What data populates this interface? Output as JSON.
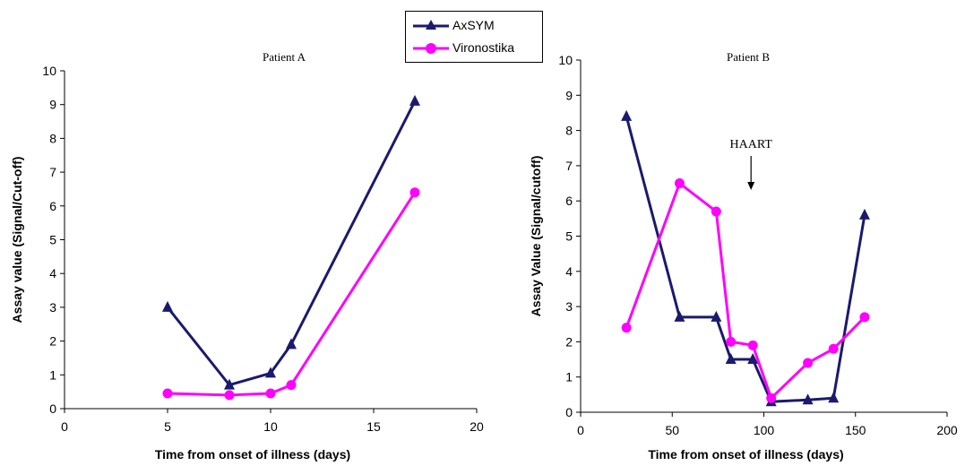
{
  "legend": {
    "items": [
      {
        "label": "AxSYM",
        "color": "#1a1a6e",
        "marker": "triangle"
      },
      {
        "label": "Vironostika",
        "color": "#ff00ff",
        "marker": "circle"
      }
    ]
  },
  "chart_data": [
    {
      "type": "line",
      "title": "Patient A",
      "xlabel": "Time from onset of illness (days)",
      "ylabel": "Assay value (Signal/Cut-off)",
      "xlim": [
        0,
        20
      ],
      "ylim": [
        0,
        10
      ],
      "xticks": [
        0,
        5,
        10,
        15,
        20
      ],
      "yticks": [
        0,
        1,
        2,
        3,
        4,
        5,
        6,
        7,
        8,
        9,
        10
      ],
      "grid": false,
      "series": [
        {
          "name": "AxSYM",
          "color": "#1a1a6e",
          "marker": "triangle",
          "x": [
            5,
            8,
            10,
            11,
            17
          ],
          "y": [
            3.0,
            0.7,
            1.05,
            1.9,
            9.1
          ]
        },
        {
          "name": "Vironostika",
          "color": "#ff00ff",
          "marker": "circle",
          "x": [
            5,
            8,
            10,
            11,
            17
          ],
          "y": [
            0.45,
            0.4,
            0.45,
            0.7,
            6.4
          ]
        }
      ]
    },
    {
      "type": "line",
      "title": "Patient B",
      "xlabel": "Time from onset of illness (days)",
      "ylabel": "Assay Value (Signal/cutoff)",
      "xlim": [
        0,
        200
      ],
      "ylim": [
        0,
        10
      ],
      "xticks": [
        0,
        50,
        100,
        150,
        200
      ],
      "yticks": [
        0,
        1,
        2,
        3,
        4,
        5,
        6,
        7,
        8,
        9,
        10
      ],
      "grid": false,
      "annotations": [
        {
          "text": "HAART",
          "x": 93,
          "arrow": "down"
        }
      ],
      "series": [
        {
          "name": "AxSYM",
          "color": "#1a1a6e",
          "marker": "triangle",
          "x": [
            25,
            54,
            74,
            82,
            94,
            104,
            124,
            138,
            155
          ],
          "y": [
            8.4,
            2.7,
            2.7,
            1.5,
            1.5,
            0.3,
            0.35,
            0.4,
            5.6
          ]
        },
        {
          "name": "Vironostika",
          "color": "#ff00ff",
          "marker": "circle",
          "x": [
            25,
            54,
            74,
            82,
            94,
            104,
            124,
            138,
            155
          ],
          "y": [
            2.4,
            6.5,
            5.7,
            2.0,
            1.9,
            0.4,
            1.4,
            1.8,
            2.7
          ]
        }
      ]
    }
  ]
}
